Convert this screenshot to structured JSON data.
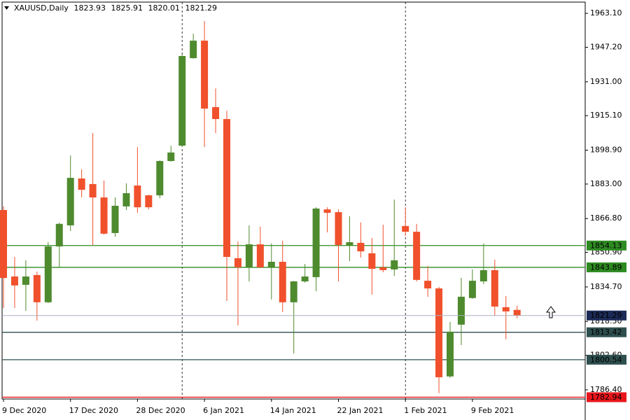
{
  "chart_data": {
    "type": "candlestick",
    "title": "XAUUSD,Daily",
    "categories": [
      "9 Dec 2020",
      null,
      null,
      null,
      null,
      null,
      "17 Dec 2020",
      null,
      null,
      null,
      null,
      null,
      "28 Dec 2020",
      null,
      null,
      null,
      null,
      null,
      "6 Jan 2021",
      null,
      null,
      null,
      null,
      null,
      "14 Jan 2021",
      null,
      null,
      null,
      null,
      null,
      "22 Jan 2021",
      null,
      null,
      null,
      null,
      null,
      "1 Feb 2021",
      null,
      null,
      null,
      null,
      null,
      "9 Feb 2021",
      null,
      null,
      null,
      null
    ],
    "open": [
      1870.8,
      1839.6,
      1835.7,
      1840.3,
      1827.5,
      1853.7,
      1863.6,
      1885.6,
      1883.0,
      1876.7,
      1860.0,
      1872.5,
      1882.3,
      1877.7,
      1877.7,
      1893.8,
      1901.0,
      1942.1,
      1950.3,
      1919.1,
      1913.5,
      1848.2,
      1843.9,
      1854.7,
      1843.9,
      1846.5,
      1827.5,
      1837.3,
      1839.3,
      1871.1,
      1869.8,
      1854.1,
      1855.4,
      1850.5,
      1843.9,
      1842.9,
      1863.3,
      1860.6,
      1837.6,
      1834.0,
      1792.7,
      1817.0,
      1829.5,
      1837.3,
      1842.6,
      1825.2,
      1823.93
    ],
    "high": [
      1872.5,
      1848.8,
      1847.2,
      1841.9,
      1855.7,
      1864.9,
      1896.4,
      1889.9,
      1906.9,
      1884.6,
      1876.7,
      1883.3,
      1900.4,
      1878.0,
      1894.1,
      1901.0,
      1943.7,
      1953.6,
      1959.5,
      1927.9,
      1917.4,
      1856.0,
      1863.6,
      1863.0,
      1855.1,
      1856.4,
      1837.6,
      1845.5,
      1872.1,
      1872.1,
      1871.1,
      1867.9,
      1865.0,
      1857.7,
      1863.9,
      1875.7,
      1872.1,
      1864.3,
      1844.5,
      1834.7,
      1818.3,
      1839.0,
      1842.9,
      1855.1,
      1847.5,
      1830.4,
      1825.91
    ],
    "low": [
      1824.8,
      1824.8,
      1823.5,
      1818.9,
      1827.1,
      1843.9,
      1861.0,
      1876.7,
      1854.4,
      1859.3,
      1858.3,
      1870.8,
      1869.5,
      1871.1,
      1876.4,
      1893.5,
      1900.4,
      1941.8,
      1900.4,
      1906.9,
      1828.1,
      1816.6,
      1837.3,
      1843.6,
      1828.8,
      1822.9,
      1803.5,
      1836.7,
      1832.7,
      1860.3,
      1837.3,
      1846.8,
      1848.5,
      1831.1,
      1841.6,
      1839.9,
      1858.7,
      1837.3,
      1830.1,
      1784.8,
      1792.0,
      1807.4,
      1829.1,
      1836.0,
      1821.2,
      1810.1,
      1820.01
    ],
    "close": [
      1838.9,
      1835.4,
      1839.6,
      1827.5,
      1853.7,
      1864.3,
      1885.9,
      1880.3,
      1876.7,
      1859.7,
      1872.8,
      1878.7,
      1872.1,
      1872.1,
      1893.8,
      1897.8,
      1943.1,
      1950.3,
      1918.4,
      1913.5,
      1848.8,
      1843.9,
      1854.7,
      1843.9,
      1846.5,
      1827.5,
      1837.3,
      1839.6,
      1871.5,
      1869.5,
      1854.4,
      1855.7,
      1851.4,
      1843.2,
      1842.6,
      1847.2,
      1860.6,
      1838.0,
      1834.0,
      1792.3,
      1813.7,
      1830.1,
      1837.6,
      1842.6,
      1825.5,
      1823.2,
      1821.29
    ],
    "up_color": "#4e8a2e",
    "down_color": "#f0502c",
    "ylim": [
      1782.1,
      1968.4
    ],
    "yticks": [
      {
        "value": 1963.1,
        "label": "1963.10"
      },
      {
        "value": 1947.2,
        "label": "1947.20"
      },
      {
        "value": 1931.0,
        "label": "1931.00"
      },
      {
        "value": 1915.1,
        "label": "1915.10"
      },
      {
        "value": 1898.9,
        "label": "1898.90"
      },
      {
        "value": 1883.0,
        "label": "1883.00"
      },
      {
        "value": 1866.8,
        "label": "1866.80"
      },
      {
        "value": 1850.9,
        "label": "1850.90"
      },
      {
        "value": 1834.7,
        "label": "1834.70"
      },
      {
        "value": 1818.5,
        "label": "1818.50"
      },
      {
        "value": 1802.6,
        "label": "1802.60"
      },
      {
        "value": 1786.4,
        "label": "1786.40"
      }
    ],
    "hlines": [
      {
        "value": 1854.13,
        "color": "#2e8b22"
      },
      {
        "value": 1843.89,
        "color": "#2e8b22"
      },
      {
        "value": 1813.42,
        "color": "#2f4f4f"
      },
      {
        "value": 1800.54,
        "color": "#2f4f4f"
      },
      {
        "value": 1782.94,
        "color": "#e8161b"
      }
    ],
    "price_line_color": "#1c2a57"
  }
}
